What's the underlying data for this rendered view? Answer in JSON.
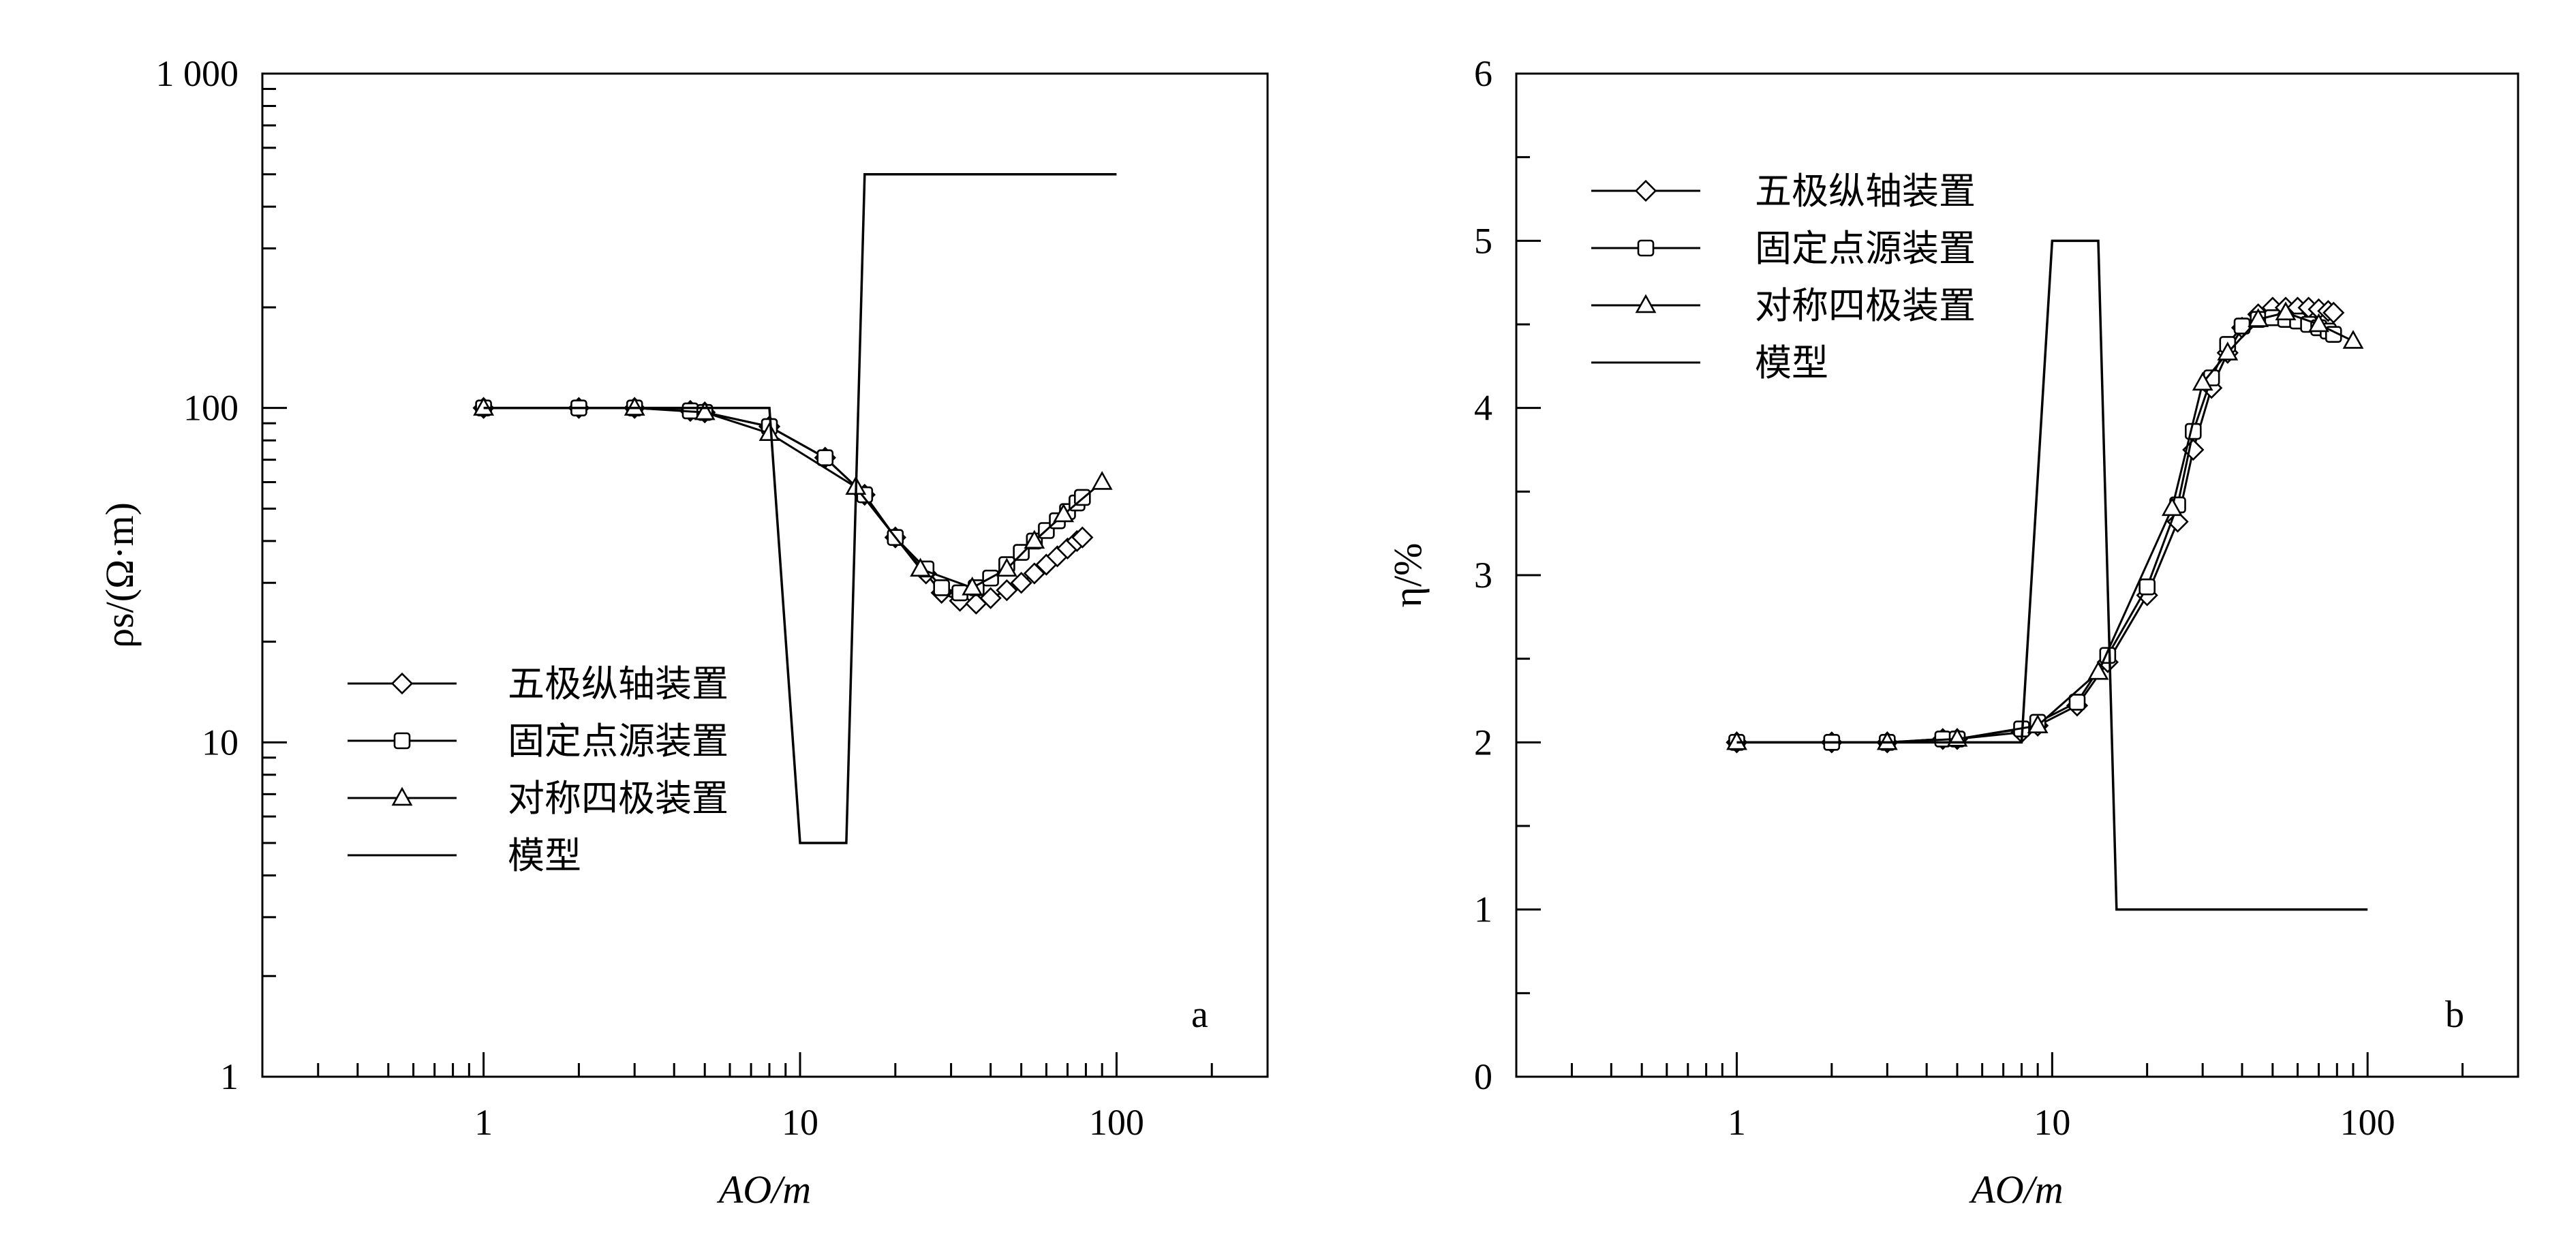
{
  "chart_data": [
    {
      "type": "line",
      "panel_label": "a",
      "xlabel": "AO/m",
      "ylabel": "ρs/(Ω·m)",
      "x_scale": "log",
      "y_scale": "log",
      "xlim": [
        0.2,
        300
      ],
      "ylim": [
        1,
        1000
      ],
      "x_ticks": [
        "1",
        "10",
        "100"
      ],
      "y_ticks": [
        "1",
        "10",
        "100",
        "1 000"
      ],
      "legend_position": "center-left",
      "series": [
        {
          "name": "五极纵轴装置",
          "marker": "diamond",
          "x": [
            1,
            2,
            3,
            4.5,
            5,
            8,
            12,
            16,
            20,
            25,
            28,
            32,
            36,
            40,
            45,
            50,
            55,
            60,
            65,
            70,
            75,
            78
          ],
          "y": [
            100,
            100,
            100,
            98,
            97,
            88,
            71,
            55,
            41,
            32,
            28,
            26.5,
            26,
            27,
            28.5,
            30,
            32,
            34,
            36,
            38,
            40,
            41
          ]
        },
        {
          "name": "固定点源装置",
          "marker": "square",
          "x": [
            1,
            2,
            3,
            4.5,
            5,
            8,
            12,
            16,
            20,
            25,
            28,
            32,
            36,
            40,
            45,
            50,
            55,
            60,
            65,
            70,
            75,
            78
          ],
          "y": [
            100,
            100,
            100,
            98,
            97,
            88,
            71,
            55,
            41,
            33,
            29,
            28,
            29,
            31,
            34,
            37,
            40,
            43,
            46,
            49,
            52,
            54
          ]
        },
        {
          "name": "对称四极装置",
          "marker": "triangle",
          "x": [
            1,
            3,
            5,
            8,
            15,
            24,
            35,
            45,
            55,
            68,
            90
          ],
          "y": [
            100,
            100,
            97,
            84,
            58,
            33,
            29,
            33,
            40,
            48,
            60
          ]
        },
        {
          "name": "模型",
          "marker": "none",
          "x": [
            1,
            8,
            10,
            14,
            16,
            100
          ],
          "y": [
            100,
            100,
            5,
            5,
            500,
            500
          ]
        }
      ]
    },
    {
      "type": "line",
      "panel_label": "b",
      "xlabel": "AO/m",
      "ylabel": "η/%",
      "x_scale": "log",
      "y_scale": "linear",
      "xlim": [
        0.2,
        300
      ],
      "ylim": [
        0,
        6
      ],
      "x_ticks": [
        "1",
        "10",
        "100"
      ],
      "y_ticks": [
        "0",
        "1",
        "2",
        "3",
        "4",
        "5",
        "6"
      ],
      "legend_position": "top-left",
      "series": [
        {
          "name": "五极纵轴装置",
          "marker": "diamond",
          "x": [
            1,
            2,
            3,
            4.5,
            5,
            8,
            9,
            12,
            15,
            20,
            25,
            28,
            32,
            36,
            40,
            45,
            50,
            55,
            60,
            65,
            70,
            75,
            78
          ],
          "y": [
            2,
            2,
            2,
            2.02,
            2.02,
            2.06,
            2.1,
            2.22,
            2.48,
            2.88,
            3.32,
            3.75,
            4.12,
            4.33,
            4.48,
            4.56,
            4.6,
            4.6,
            4.6,
            4.6,
            4.59,
            4.58,
            4.57
          ]
        },
        {
          "name": "固定点源装置",
          "marker": "square",
          "x": [
            1,
            2,
            3,
            4.5,
            5,
            8,
            9,
            12,
            15,
            20,
            25,
            28,
            32,
            36,
            40,
            45,
            50,
            55,
            60,
            65,
            70,
            75,
            78
          ],
          "y": [
            2,
            2,
            2,
            2.02,
            2.02,
            2.08,
            2.12,
            2.24,
            2.52,
            2.93,
            3.42,
            3.86,
            4.18,
            4.38,
            4.49,
            4.53,
            4.54,
            4.53,
            4.52,
            4.5,
            4.48,
            4.46,
            4.44
          ]
        },
        {
          "name": "对称四极装置",
          "marker": "triangle",
          "x": [
            1,
            3,
            5,
            9,
            14,
            24,
            30,
            36,
            45,
            55,
            70,
            90
          ],
          "y": [
            2,
            2,
            2.02,
            2.1,
            2.42,
            3.4,
            4.15,
            4.33,
            4.53,
            4.57,
            4.5,
            4.4
          ]
        },
        {
          "name": "模型",
          "marker": "none",
          "x": [
            1,
            8,
            10,
            14,
            16,
            100
          ],
          "y": [
            2,
            2,
            5,
            5,
            1,
            1
          ]
        }
      ]
    }
  ]
}
